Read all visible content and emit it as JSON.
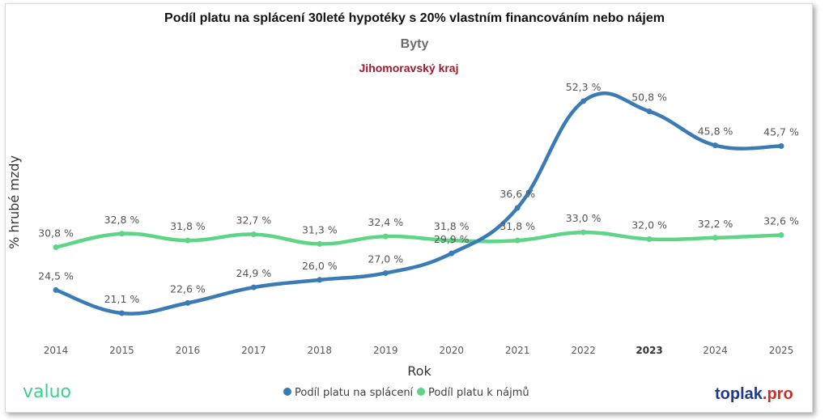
{
  "chart_data": {
    "type": "line",
    "title": "Podíl platu na splácení 30leté hypotéky s 20% vlastním financováním nebo nájem",
    "subtitle": "Byty",
    "region": "Jihomoravský kraj",
    "xlabel": "Rok",
    "ylabel": "% hrubé mzdy",
    "categories": [
      "2014",
      "2015",
      "2016",
      "2017",
      "2018",
      "2019",
      "2020",
      "2021",
      "2022",
      "2023",
      "2024",
      "2025"
    ],
    "bold_category": "2023",
    "ylim": [
      18,
      56
    ],
    "grid": false,
    "legend_position": "bottom",
    "series": [
      {
        "name": "Podíl platu na splácení",
        "color": "#3a7bb5",
        "values": [
          24.5,
          21.1,
          22.6,
          24.9,
          26.0,
          27.0,
          29.9,
          36.6,
          52.3,
          50.8,
          45.8,
          45.7
        ],
        "labels": [
          "24,5 %",
          "21,1 %",
          "22,6 %",
          "24,9 %",
          "26,0 %",
          "27,0 %",
          "29,9 %",
          "36,6 %",
          "52,3 %",
          "50,8 %",
          "45,8 %",
          "45,7 %"
        ]
      },
      {
        "name": "Podíl platu k nájmů",
        "color": "#5ed487",
        "values": [
          30.8,
          32.8,
          31.8,
          32.7,
          31.3,
          32.4,
          31.8,
          31.8,
          33.0,
          32.0,
          32.2,
          32.6
        ],
        "labels": [
          "30,8 %",
          "32,8 %",
          "31,8 %",
          "32,7 %",
          "31,3 %",
          "32,4 %",
          "31,8 %",
          "31,8 %",
          "33,0 %",
          "32,0 %",
          "32,2 %",
          "32,6 %"
        ]
      }
    ]
  },
  "branding": {
    "left_logo": "valuo",
    "right_logo_main": "toplak",
    "right_logo_suffix": ".pro",
    "left_logo_color": "#3ecf8e",
    "right_logo_color": "#1f3a8a",
    "right_suffix_color": "#c9302c"
  }
}
